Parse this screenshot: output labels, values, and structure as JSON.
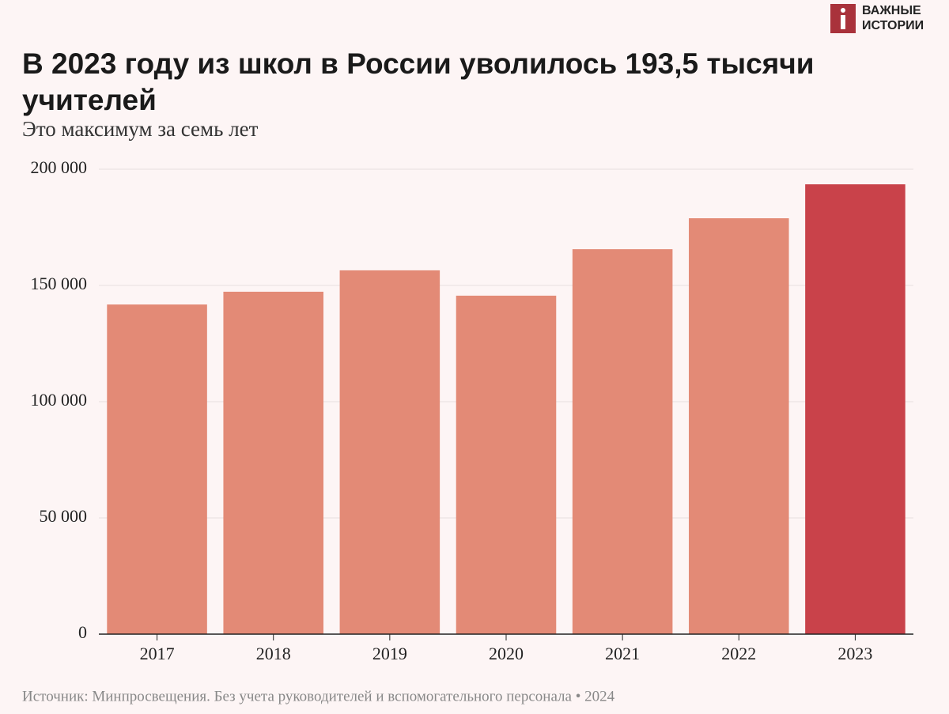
{
  "chart_data": {
    "type": "bar",
    "title": "В 2023 году из школ в России уволилось 193,5 тысячи учителей",
    "subtitle": "Это максимум за семь лет",
    "source": "Источник: Минпросвещения. Без учета руководителей и вспомогательного персонала • 2024",
    "logo": [
      "ВАЖНЫЕ",
      "ИСТОРИИ"
    ],
    "categories": [
      "2017",
      "2018",
      "2019",
      "2020",
      "2021",
      "2022",
      "2023"
    ],
    "values": [
      141800,
      147300,
      156500,
      145600,
      165600,
      178900,
      193500
    ],
    "colors": [
      "#e38a76",
      "#e38a76",
      "#e38a76",
      "#e38a76",
      "#e38a76",
      "#e38a76",
      "#c9424a"
    ],
    "ylim": [
      0,
      200000
    ],
    "yticks": [
      0,
      {
        "value": 50000,
        "label": "50 000"
      },
      {
        "value": 100000,
        "label": "100 000"
      },
      {
        "value": 150000,
        "label": "150 000"
      },
      {
        "value": 200000,
        "label": "200 000"
      }
    ],
    "grid": true
  }
}
